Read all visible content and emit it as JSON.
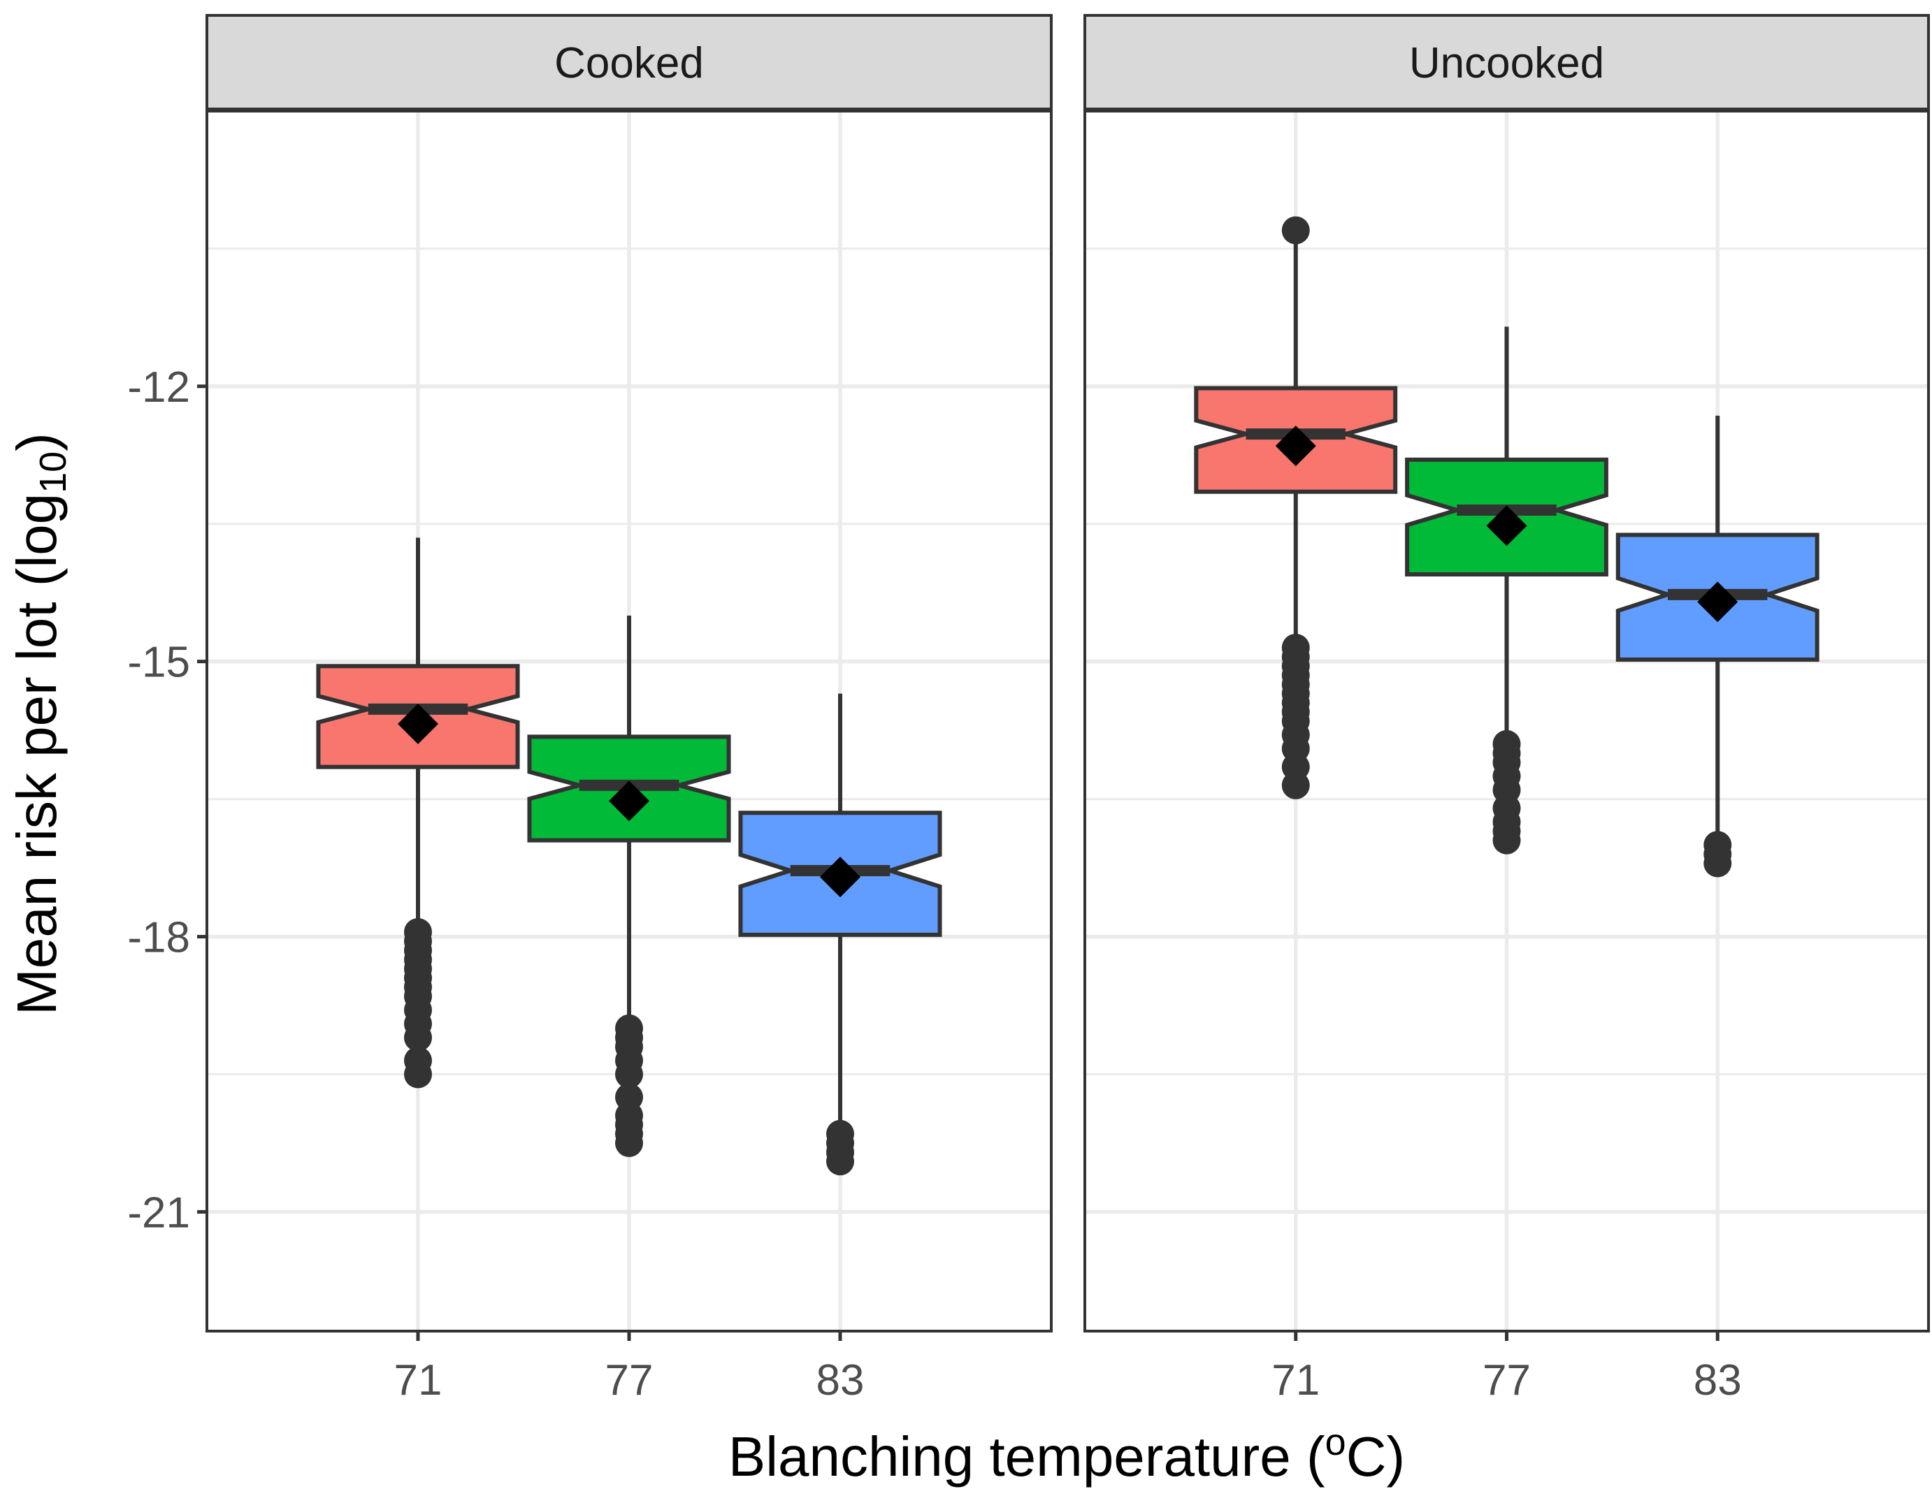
{
  "chart_data": {
    "type": "boxplot",
    "facet_labels": [
      "Cooked",
      "Uncooked"
    ],
    "xlabel": {
      "text": "Blanching temperature (",
      "superscript": "o",
      "after": "C)"
    },
    "ylabel": {
      "text": "Mean risk per lot (log",
      "subscript": "10",
      "after": ")"
    },
    "categories": [
      "71",
      "77",
      "83"
    ],
    "ylim": [
      -22.3,
      -9.0
    ],
    "yticks": [
      -12,
      -15,
      -18,
      -21
    ],
    "ytick_labels": [
      "-12",
      "-15",
      "-18",
      "-21"
    ],
    "colors": {
      "71": "#F8766D",
      "77": "#00BA38",
      "83": "#619CFF"
    },
    "grid": true,
    "notched": true,
    "mean_marker": "diamond",
    "panels": [
      {
        "facet": "Cooked",
        "boxes": [
          {
            "category": "71",
            "whisker_low": -17.9,
            "q1": -16.15,
            "median": -15.52,
            "q3": -15.05,
            "whisker_high": -13.65,
            "mean": -15.68,
            "outliers": [
              -17.95,
              -18.05,
              -18.15,
              -18.25,
              -18.35,
              -18.45,
              -18.55,
              -18.65,
              -18.8,
              -18.95,
              -19.1,
              -19.35,
              -19.5
            ]
          },
          {
            "category": "77",
            "whisker_low": -18.95,
            "q1": -16.95,
            "median": -16.35,
            "q3": -15.82,
            "whisker_high": -14.5,
            "mean": -16.52,
            "outliers": [
              -19.0,
              -19.1,
              -19.2,
              -19.35,
              -19.5,
              -19.75,
              -19.95,
              -20.05,
              -20.15,
              -20.25
            ]
          },
          {
            "category": "83",
            "whisker_low": -20.1,
            "q1": -17.98,
            "median": -17.28,
            "q3": -16.65,
            "whisker_high": -15.35,
            "mean": -17.35,
            "outliers": [
              -20.15,
              -20.25,
              -20.35,
              -20.45
            ]
          }
        ]
      },
      {
        "facet": "Uncooked",
        "boxes": [
          {
            "category": "71",
            "whisker_low": -14.8,
            "q1": -13.15,
            "median": -12.52,
            "q3": -12.02,
            "whisker_high": -10.3,
            "mean": -12.65,
            "outliers": [
              -10.3,
              -14.85,
              -14.95,
              -15.05,
              -15.15,
              -15.25,
              -15.35,
              -15.45,
              -15.55,
              -15.65,
              -15.8,
              -15.95,
              -16.15,
              -16.35
            ]
          },
          {
            "category": "77",
            "whisker_low": -15.85,
            "q1": -14.05,
            "median": -13.35,
            "q3": -12.8,
            "whisker_high": -11.35,
            "mean": -13.52,
            "outliers": [
              -15.9,
              -16.0,
              -16.1,
              -16.25,
              -16.4,
              -16.6,
              -16.75,
              -16.85,
              -16.95
            ]
          },
          {
            "category": "83",
            "whisker_low": -16.95,
            "q1": -14.98,
            "median": -14.27,
            "q3": -13.62,
            "whisker_high": -12.32,
            "mean": -14.35,
            "outliers": [
              -17.0,
              -17.1,
              -17.2
            ]
          }
        ]
      }
    ]
  }
}
